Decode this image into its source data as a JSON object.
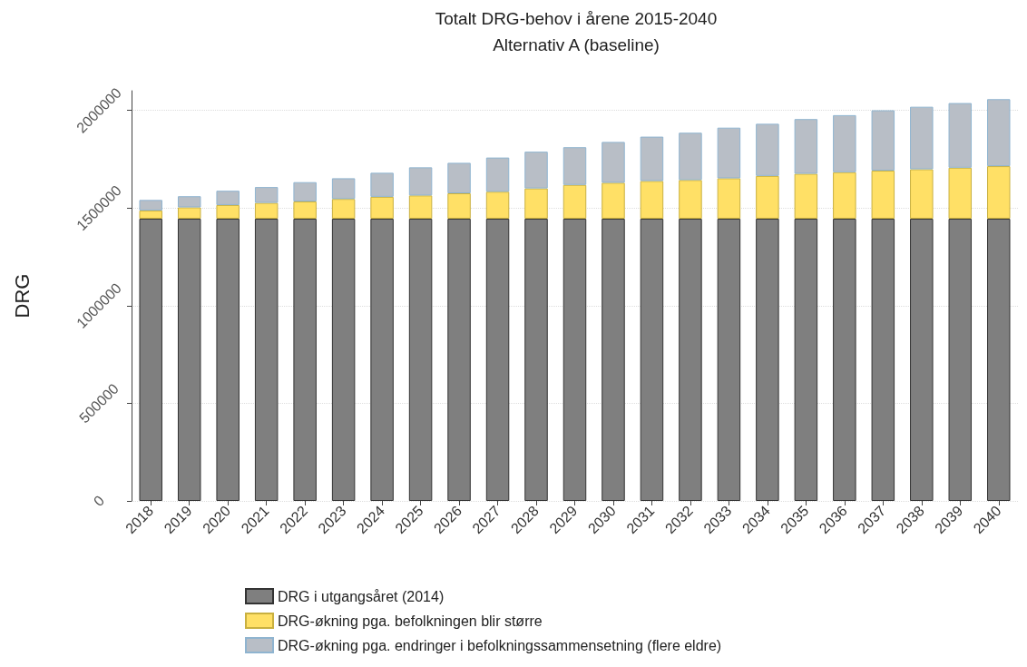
{
  "chart_data": {
    "type": "bar",
    "title": "Totalt DRG-behov i årene 2015-2040",
    "subtitle": "Alternativ A (baseline)",
    "ylabel": "DRG",
    "categories": [
      "2018",
      "2019",
      "2020",
      "2021",
      "2022",
      "2023",
      "2024",
      "2025",
      "2026",
      "2027",
      "2028",
      "2029",
      "2030",
      "2031",
      "2032",
      "2033",
      "2034",
      "2035",
      "2036",
      "2037",
      "2038",
      "2039",
      "2040"
    ],
    "stacked": true,
    "series": [
      {
        "name": "DRG i utgangsåret (2014)",
        "color": "#7f7f7f",
        "values": [
          1445000,
          1445000,
          1445000,
          1445000,
          1445000,
          1445000,
          1445000,
          1445000,
          1445000,
          1445000,
          1445000,
          1445000,
          1445000,
          1445000,
          1445000,
          1445000,
          1445000,
          1445000,
          1445000,
          1445000,
          1445000,
          1445000,
          1445000
        ]
      },
      {
        "name": "DRG-økning pga. befolkningen blir større",
        "color": "#ffe066",
        "values": [
          42000,
          58000,
          70000,
          81000,
          88000,
          101000,
          112000,
          119000,
          130000,
          138000,
          155000,
          173000,
          184000,
          193000,
          198000,
          207000,
          219000,
          230000,
          238000,
          246000,
          253000,
          261000,
          269000
        ]
      },
      {
        "name": "DRG-økning pga. endringer i befolkningssammensetning (flere eldre)",
        "color": "#b8bec6",
        "values": [
          54000,
          57000,
          73000,
          81000,
          99000,
          106000,
          123000,
          144000,
          156000,
          175000,
          188000,
          193000,
          209000,
          227000,
          242000,
          259000,
          267000,
          280000,
          292000,
          309000,
          320000,
          331000,
          343000
        ]
      }
    ],
    "ylim": [
      0,
      2100000
    ],
    "yticks": [
      0,
      500000,
      1000000,
      1500000,
      2000000
    ],
    "grid": "y",
    "legend": "bottom"
  }
}
